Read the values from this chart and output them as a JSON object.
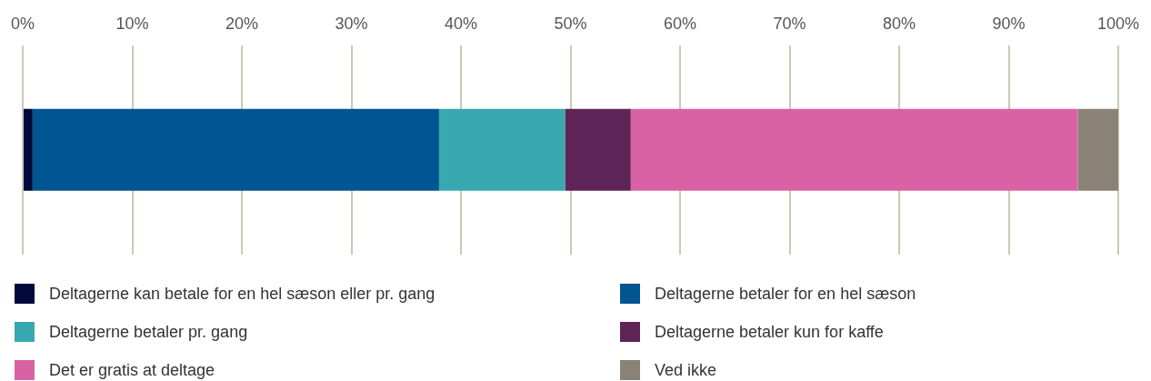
{
  "chart_data": {
    "type": "bar",
    "orientation": "horizontal",
    "stacked": true,
    "categories": [
      null
    ],
    "series": [
      {
        "name": "Deltagerne kan betale for en hel sæson eller pr. gang",
        "color": "#000a3c",
        "values": [
          0.9
        ]
      },
      {
        "name": "Deltagerne betaler for en hel sæson",
        "color": "#005592",
        "values": [
          37.1
        ]
      },
      {
        "name": "Deltagerne betaler pr. gang",
        "color": "#38a8b0",
        "values": [
          11.5
        ]
      },
      {
        "name": "Deltagerne betaler kun for kaffe",
        "color": "#5e2457",
        "values": [
          6.0
        ]
      },
      {
        "name": "Det er gratis at deltage",
        "color": "#d962a4",
        "values": [
          40.8
        ]
      },
      {
        "name": "Ved ikke",
        "color": "#8a8177",
        "values": [
          3.7
        ]
      }
    ],
    "xlim": [
      0,
      100
    ],
    "xticks": [
      {
        "value": 0,
        "label": "0%"
      },
      {
        "value": 10,
        "label": "10%"
      },
      {
        "value": 20,
        "label": "20%"
      },
      {
        "value": 30,
        "label": "30%"
      },
      {
        "value": 40,
        "label": "40%"
      },
      {
        "value": 50,
        "label": "50%"
      },
      {
        "value": 60,
        "label": "60%"
      },
      {
        "value": 70,
        "label": "70%"
      },
      {
        "value": 80,
        "label": "80%"
      },
      {
        "value": 90,
        "label": "90%"
      },
      {
        "value": 100,
        "label": "100%"
      }
    ],
    "grid": "x",
    "legend": "bottom",
    "tick_labels": "x"
  }
}
